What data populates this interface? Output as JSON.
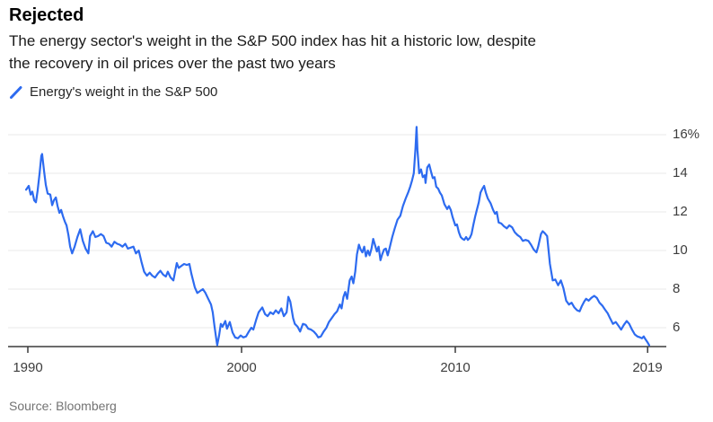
{
  "header": {
    "title": "Rejected",
    "subtitle": "The energy sector's weight in the S&P 500 index has hit a historic low, despite\nthe recovery in oil prices over the past two years"
  },
  "legend": {
    "label": "Energy's weight in the S&P 500",
    "marker_icon": "diagonal-line-icon",
    "marker_color": "#2d6bf0"
  },
  "source": {
    "label": "Source: Bloomberg"
  },
  "chart_data": {
    "type": "line",
    "title": "Energy's weight in the S&P 500",
    "xlabel": "",
    "ylabel": "",
    "unit": "%",
    "grid": "horizontal",
    "legend_position": "top-left",
    "xlim": [
      1989.9,
      2019.9
    ],
    "ylim": [
      5.0,
      16.6
    ],
    "x_ticks": [
      1990,
      2000,
      2010,
      2019
    ],
    "x_tick_labels": [
      "1990",
      "2000",
      "2010",
      "2019"
    ],
    "y_ticks": [
      16,
      14,
      12,
      10,
      8,
      6
    ],
    "y_tick_labels": [
      "16%",
      "14",
      "12",
      "10",
      "8",
      "6"
    ],
    "colors": {
      "line": "#2d6bf0",
      "grid": "#e8e8e8",
      "axis": "#3b3b3b"
    },
    "series": [
      {
        "name": "Energy's weight in the S&P 500",
        "points": [
          [
            1989.92,
            13.15
          ],
          [
            1990.04,
            13.35
          ],
          [
            1990.13,
            12.9
          ],
          [
            1990.21,
            13.05
          ],
          [
            1990.3,
            12.6
          ],
          [
            1990.38,
            12.5
          ],
          [
            1990.46,
            13.1
          ],
          [
            1990.55,
            14.0
          ],
          [
            1990.63,
            14.9
          ],
          [
            1990.67,
            15.0
          ],
          [
            1990.76,
            14.1
          ],
          [
            1990.84,
            13.4
          ],
          [
            1990.93,
            12.95
          ],
          [
            1991.05,
            12.9
          ],
          [
            1991.14,
            12.35
          ],
          [
            1991.22,
            12.6
          ],
          [
            1991.31,
            12.75
          ],
          [
            1991.39,
            12.3
          ],
          [
            1991.48,
            11.95
          ],
          [
            1991.56,
            12.1
          ],
          [
            1991.65,
            11.75
          ],
          [
            1991.73,
            11.5
          ],
          [
            1991.81,
            11.3
          ],
          [
            1991.9,
            10.8
          ],
          [
            1991.98,
            10.2
          ],
          [
            1992.07,
            9.85
          ],
          [
            1992.19,
            10.2
          ],
          [
            1992.32,
            10.7
          ],
          [
            1992.45,
            11.1
          ],
          [
            1992.57,
            10.5
          ],
          [
            1992.7,
            10.1
          ],
          [
            1992.83,
            9.85
          ],
          [
            1992.91,
            10.75
          ],
          [
            1993.04,
            11.0
          ],
          [
            1993.16,
            10.7
          ],
          [
            1993.29,
            10.75
          ],
          [
            1993.42,
            10.85
          ],
          [
            1993.54,
            10.75
          ],
          [
            1993.67,
            10.4
          ],
          [
            1993.8,
            10.35
          ],
          [
            1993.92,
            10.2
          ],
          [
            1994.05,
            10.45
          ],
          [
            1994.18,
            10.35
          ],
          [
            1994.3,
            10.3
          ],
          [
            1994.43,
            10.2
          ],
          [
            1994.56,
            10.35
          ],
          [
            1994.68,
            10.1
          ],
          [
            1994.81,
            10.15
          ],
          [
            1994.94,
            10.2
          ],
          [
            1995.06,
            9.85
          ],
          [
            1995.19,
            10.0
          ],
          [
            1995.32,
            9.4
          ],
          [
            1995.44,
            8.9
          ],
          [
            1995.57,
            8.7
          ],
          [
            1995.7,
            8.85
          ],
          [
            1995.82,
            8.7
          ],
          [
            1995.95,
            8.6
          ],
          [
            1996.08,
            8.8
          ],
          [
            1996.2,
            8.95
          ],
          [
            1996.33,
            8.75
          ],
          [
            1996.46,
            8.65
          ],
          [
            1996.55,
            8.9
          ],
          [
            1996.68,
            8.6
          ],
          [
            1996.81,
            8.45
          ],
          [
            1996.89,
            8.9
          ],
          [
            1996.97,
            9.35
          ],
          [
            1997.06,
            9.1
          ],
          [
            1997.18,
            9.2
          ],
          [
            1997.31,
            9.3
          ],
          [
            1997.44,
            9.25
          ],
          [
            1997.56,
            9.3
          ],
          [
            1997.65,
            8.8
          ],
          [
            1997.81,
            8.1
          ],
          [
            1997.93,
            7.8
          ],
          [
            1998.06,
            7.9
          ],
          [
            1998.19,
            8.0
          ],
          [
            1998.31,
            7.8
          ],
          [
            1998.44,
            7.5
          ],
          [
            1998.57,
            7.2
          ],
          [
            1998.65,
            6.8
          ],
          [
            1998.73,
            6.1
          ],
          [
            1998.82,
            5.4
          ],
          [
            1998.86,
            5.1
          ],
          [
            1998.95,
            5.6
          ],
          [
            1999.03,
            6.2
          ],
          [
            1999.11,
            6.05
          ],
          [
            1999.24,
            6.35
          ],
          [
            1999.32,
            5.95
          ],
          [
            1999.45,
            6.3
          ],
          [
            1999.58,
            5.75
          ],
          [
            1999.7,
            5.5
          ],
          [
            1999.83,
            5.45
          ],
          [
            1999.96,
            5.6
          ],
          [
            2000.08,
            5.5
          ],
          [
            2000.21,
            5.55
          ],
          [
            2000.34,
            5.8
          ],
          [
            2000.46,
            6.0
          ],
          [
            2000.55,
            5.9
          ],
          [
            2000.68,
            6.4
          ],
          [
            2000.8,
            6.8
          ],
          [
            2000.97,
            7.05
          ],
          [
            2001.1,
            6.7
          ],
          [
            2001.22,
            6.6
          ],
          [
            2001.35,
            6.8
          ],
          [
            2001.48,
            6.7
          ],
          [
            2001.6,
            6.9
          ],
          [
            2001.73,
            6.75
          ],
          [
            2001.86,
            7.0
          ],
          [
            2001.98,
            6.6
          ],
          [
            2002.11,
            6.8
          ],
          [
            2002.19,
            7.6
          ],
          [
            2002.28,
            7.35
          ],
          [
            2002.41,
            6.5
          ],
          [
            2002.49,
            6.2
          ],
          [
            2002.62,
            6.05
          ],
          [
            2002.74,
            5.8
          ],
          [
            2002.87,
            6.2
          ],
          [
            2003.0,
            6.15
          ],
          [
            2003.12,
            5.95
          ],
          [
            2003.25,
            5.9
          ],
          [
            2003.38,
            5.8
          ],
          [
            2003.5,
            5.65
          ],
          [
            2003.59,
            5.5
          ],
          [
            2003.71,
            5.55
          ],
          [
            2003.84,
            5.8
          ],
          [
            2003.97,
            6.0
          ],
          [
            2004.09,
            6.3
          ],
          [
            2004.22,
            6.5
          ],
          [
            2004.35,
            6.7
          ],
          [
            2004.47,
            6.85
          ],
          [
            2004.6,
            7.2
          ],
          [
            2004.68,
            7.0
          ],
          [
            2004.77,
            7.6
          ],
          [
            2004.85,
            7.85
          ],
          [
            2004.94,
            7.5
          ],
          [
            2005.06,
            8.45
          ],
          [
            2005.15,
            8.65
          ],
          [
            2005.23,
            8.3
          ],
          [
            2005.32,
            8.9
          ],
          [
            2005.4,
            9.8
          ],
          [
            2005.49,
            10.3
          ],
          [
            2005.57,
            10.05
          ],
          [
            2005.65,
            9.9
          ],
          [
            2005.74,
            10.2
          ],
          [
            2005.82,
            9.7
          ],
          [
            2005.91,
            10.0
          ],
          [
            2005.99,
            9.75
          ],
          [
            2006.08,
            10.1
          ],
          [
            2006.16,
            10.6
          ],
          [
            2006.24,
            10.3
          ],
          [
            2006.33,
            9.95
          ],
          [
            2006.41,
            10.2
          ],
          [
            2006.5,
            9.5
          ],
          [
            2006.58,
            9.8
          ],
          [
            2006.67,
            10.05
          ],
          [
            2006.75,
            10.1
          ],
          [
            2006.84,
            9.75
          ],
          [
            2006.92,
            10.1
          ],
          [
            2007.05,
            10.7
          ],
          [
            2007.17,
            11.15
          ],
          [
            2007.3,
            11.6
          ],
          [
            2007.43,
            11.8
          ],
          [
            2007.55,
            12.3
          ],
          [
            2007.68,
            12.7
          ],
          [
            2007.81,
            13.05
          ],
          [
            2007.89,
            13.3
          ],
          [
            2007.97,
            13.6
          ],
          [
            2008.06,
            14.0
          ],
          [
            2008.14,
            15.3
          ],
          [
            2008.19,
            16.4
          ],
          [
            2008.23,
            15.2
          ],
          [
            2008.31,
            14.0
          ],
          [
            2008.4,
            14.2
          ],
          [
            2008.48,
            13.8
          ],
          [
            2008.57,
            13.9
          ],
          [
            2008.61,
            13.5
          ],
          [
            2008.69,
            14.3
          ],
          [
            2008.78,
            14.45
          ],
          [
            2008.86,
            14.1
          ],
          [
            2008.95,
            13.75
          ],
          [
            2009.03,
            13.8
          ],
          [
            2009.11,
            13.3
          ],
          [
            2009.2,
            13.2
          ],
          [
            2009.28,
            13.0
          ],
          [
            2009.37,
            12.85
          ],
          [
            2009.49,
            12.4
          ],
          [
            2009.62,
            12.15
          ],
          [
            2009.7,
            12.3
          ],
          [
            2009.79,
            12.1
          ],
          [
            2009.87,
            11.75
          ],
          [
            2010.0,
            11.3
          ],
          [
            2010.08,
            11.35
          ],
          [
            2010.17,
            10.95
          ],
          [
            2010.25,
            10.7
          ],
          [
            2010.34,
            10.6
          ],
          [
            2010.42,
            10.55
          ],
          [
            2010.51,
            10.7
          ],
          [
            2010.59,
            10.55
          ],
          [
            2010.68,
            10.65
          ],
          [
            2010.76,
            10.85
          ],
          [
            2010.84,
            11.3
          ],
          [
            2010.93,
            11.75
          ],
          [
            2011.01,
            12.1
          ],
          [
            2011.1,
            12.5
          ],
          [
            2011.18,
            13.0
          ],
          [
            2011.27,
            13.2
          ],
          [
            2011.35,
            13.35
          ],
          [
            2011.43,
            13.0
          ],
          [
            2011.52,
            12.7
          ],
          [
            2011.65,
            12.45
          ],
          [
            2011.77,
            12.1
          ],
          [
            2011.86,
            11.9
          ],
          [
            2011.94,
            12.0
          ],
          [
            2012.03,
            11.45
          ],
          [
            2012.15,
            11.4
          ],
          [
            2012.28,
            11.25
          ],
          [
            2012.41,
            11.15
          ],
          [
            2012.53,
            11.3
          ],
          [
            2012.66,
            11.2
          ],
          [
            2012.78,
            10.95
          ],
          [
            2012.91,
            10.8
          ],
          [
            2013.04,
            10.7
          ],
          [
            2013.16,
            10.5
          ],
          [
            2013.29,
            10.55
          ],
          [
            2013.42,
            10.5
          ],
          [
            2013.54,
            10.3
          ],
          [
            2013.67,
            10.05
          ],
          [
            2013.8,
            9.9
          ],
          [
            2013.88,
            10.2
          ],
          [
            2014.01,
            10.85
          ],
          [
            2014.09,
            11.0
          ],
          [
            2014.18,
            10.9
          ],
          [
            2014.3,
            10.75
          ],
          [
            2014.43,
            9.3
          ],
          [
            2014.56,
            8.45
          ],
          [
            2014.68,
            8.5
          ],
          [
            2014.81,
            8.2
          ],
          [
            2014.94,
            8.45
          ],
          [
            2015.06,
            8.05
          ],
          [
            2015.19,
            7.4
          ],
          [
            2015.32,
            7.2
          ],
          [
            2015.44,
            7.3
          ],
          [
            2015.57,
            7.05
          ],
          [
            2015.7,
            6.9
          ],
          [
            2015.82,
            6.85
          ],
          [
            2015.91,
            7.1
          ],
          [
            2016.03,
            7.35
          ],
          [
            2016.12,
            7.5
          ],
          [
            2016.24,
            7.4
          ],
          [
            2016.37,
            7.55
          ],
          [
            2016.5,
            7.65
          ],
          [
            2016.62,
            7.55
          ],
          [
            2016.75,
            7.3
          ],
          [
            2016.88,
            7.15
          ],
          [
            2017.0,
            6.95
          ],
          [
            2017.13,
            6.75
          ],
          [
            2017.26,
            6.45
          ],
          [
            2017.38,
            6.2
          ],
          [
            2017.51,
            6.3
          ],
          [
            2017.64,
            6.1
          ],
          [
            2017.76,
            5.9
          ],
          [
            2017.89,
            6.15
          ],
          [
            2018.02,
            6.35
          ],
          [
            2018.14,
            6.2
          ],
          [
            2018.27,
            5.9
          ],
          [
            2018.4,
            5.65
          ],
          [
            2018.52,
            5.55
          ],
          [
            2018.65,
            5.5
          ],
          [
            2018.73,
            5.45
          ],
          [
            2018.82,
            5.55
          ],
          [
            2018.9,
            5.4
          ],
          [
            2018.99,
            5.25
          ],
          [
            2019.07,
            5.1
          ]
        ]
      }
    ]
  }
}
